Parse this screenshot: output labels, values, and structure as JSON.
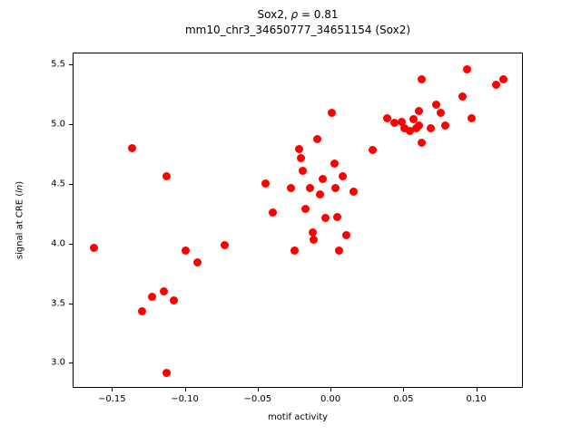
{
  "title": {
    "line1_prefix": "Sox2, ",
    "line1_rho": "ρ",
    "line1_suffix": " = 0.81",
    "line2": "mm10_chr3_34650777_34651154 (Sox2)"
  },
  "chart_data": {
    "type": "scatter",
    "title": "Sox2, ρ = 0.81",
    "subtitle": "mm10_chr3_34650777_34651154 (Sox2)",
    "xlabel": "motif activity",
    "ylabel_prefix": "signal at CRE (",
    "ylabel_italic": "ln",
    "ylabel_suffix": ")",
    "marker_color": "#ff0000",
    "marker_size_px": 9,
    "grid": false,
    "legend": "none",
    "xlim": [
      -0.177,
      0.132
    ],
    "ylim": [
      2.79,
      5.6
    ],
    "x_ticks": {
      "values": [
        -0.15,
        -0.1,
        -0.05,
        0.0,
        0.05,
        0.1
      ],
      "labels": [
        "−0.15",
        "−0.10",
        "−0.05",
        "0.00",
        "0.05",
        "0.10"
      ]
    },
    "y_ticks": {
      "values": [
        3.0,
        3.5,
        4.0,
        4.5,
        5.0,
        5.5
      ],
      "labels": [
        "3.0",
        "3.5",
        "4.0",
        "4.5",
        "5.0",
        "5.5"
      ]
    },
    "points": [
      [
        -0.163,
        3.97
      ],
      [
        -0.137,
        4.81
      ],
      [
        -0.13,
        3.44
      ],
      [
        -0.123,
        3.56
      ],
      [
        -0.115,
        3.61
      ],
      [
        -0.113,
        4.57
      ],
      [
        -0.113,
        2.92
      ],
      [
        -0.108,
        3.53
      ],
      [
        -0.1,
        3.95
      ],
      [
        -0.092,
        3.85
      ],
      [
        -0.073,
        3.99
      ],
      [
        -0.045,
        4.51
      ],
      [
        -0.04,
        4.27
      ],
      [
        -0.028,
        4.47
      ],
      [
        -0.025,
        3.95
      ],
      [
        -0.022,
        4.8
      ],
      [
        -0.021,
        4.72
      ],
      [
        -0.02,
        4.62
      ],
      [
        -0.018,
        4.3
      ],
      [
        -0.015,
        4.47
      ],
      [
        -0.013,
        4.1
      ],
      [
        -0.012,
        4.04
      ],
      [
        -0.01,
        4.88
      ],
      [
        -0.008,
        4.42
      ],
      [
        -0.006,
        4.55
      ],
      [
        -0.004,
        4.22
      ],
      [
        0.0,
        5.1
      ],
      [
        0.002,
        4.68
      ],
      [
        0.003,
        4.47
      ],
      [
        0.004,
        4.23
      ],
      [
        0.005,
        3.95
      ],
      [
        0.008,
        4.57
      ],
      [
        0.01,
        4.08
      ],
      [
        0.015,
        4.44
      ],
      [
        0.028,
        4.79
      ],
      [
        0.038,
        5.06
      ],
      [
        0.043,
        5.02
      ],
      [
        0.048,
        5.03
      ],
      [
        0.05,
        4.97
      ],
      [
        0.054,
        4.95
      ],
      [
        0.056,
        5.05
      ],
      [
        0.058,
        4.97
      ],
      [
        0.06,
        5.12
      ],
      [
        0.06,
        5.0
      ],
      [
        0.062,
        5.38
      ],
      [
        0.062,
        4.85
      ],
      [
        0.068,
        4.97
      ],
      [
        0.072,
        5.17
      ],
      [
        0.075,
        5.1
      ],
      [
        0.078,
        5.0
      ],
      [
        0.09,
        5.24
      ],
      [
        0.093,
        5.47
      ],
      [
        0.096,
        5.06
      ],
      [
        0.113,
        5.34
      ],
      [
        0.118,
        5.38
      ]
    ]
  }
}
